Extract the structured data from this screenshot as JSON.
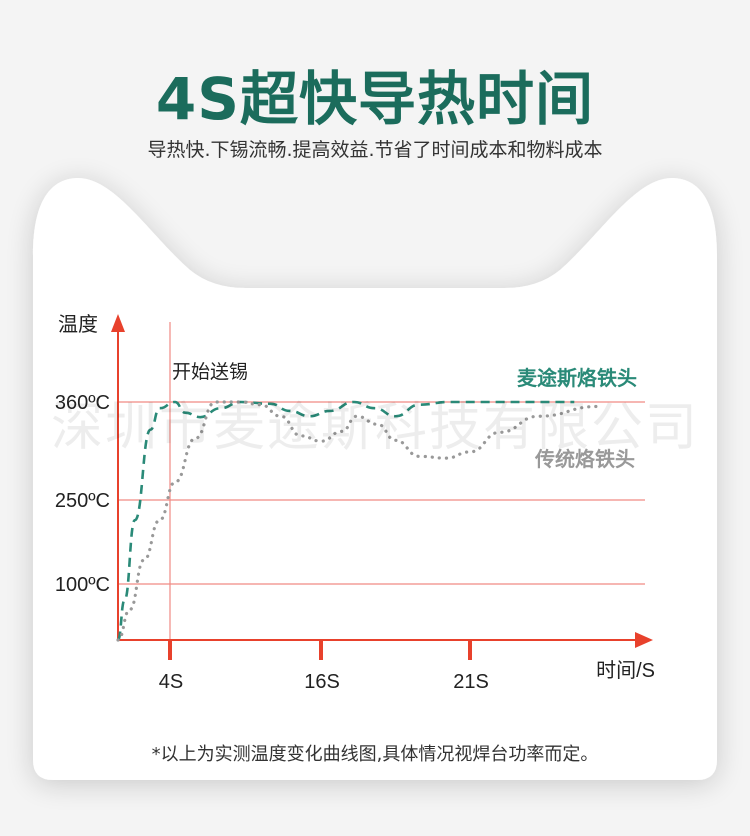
{
  "header": {
    "title": "4S超快导热时间",
    "subtitle": "导热快.下锡流畅.提高效益.节省了时间成本和物料成本"
  },
  "footnote": "*以上为实测温度变化曲线图,具体情况视焊台功率而定。",
  "watermark": "深圳市麦途斯科技有限公司",
  "colors": {
    "title": "#1b6c5c",
    "axis": "#e8412c",
    "gridline": "#f08a84",
    "series_mitus": "#2a8a78",
    "series_traditional": "#999999"
  },
  "chart_data": {
    "type": "line",
    "ylabel": "温度",
    "xlabel": "时间/S",
    "y_ticks": [
      {
        "value": 100,
        "label": "100ºC"
      },
      {
        "value": 250,
        "label": "250ºC"
      },
      {
        "value": 360,
        "label": "360ºC"
      }
    ],
    "x_ticks": [
      {
        "value": 4,
        "label": "4S"
      },
      {
        "value": 16,
        "label": "16S"
      },
      {
        "value": 21,
        "label": "21S"
      }
    ],
    "grid": "horizontal lines at y ticks",
    "annotations": [
      {
        "x": 4,
        "label": "开始送锡"
      }
    ],
    "series": [
      {
        "name": "麦途斯烙铁头",
        "style": "dashed",
        "x": [
          0,
          0.5,
          1.3,
          2.5,
          3.2,
          4.4,
          5.2,
          6.4,
          8,
          9.6,
          12,
          13.5,
          15.1,
          16.3,
          17.1,
          17.8,
          18.5,
          19.3,
          20.3,
          24.5
        ],
        "y": [
          0,
          71,
          214,
          329,
          353,
          360,
          348,
          343,
          353,
          360,
          358,
          350,
          344,
          350,
          360,
          353,
          344,
          357,
          360,
          360
        ]
      },
      {
        "name": "传统烙铁头",
        "style": "dotted",
        "x": [
          0,
          0.9,
          2.0,
          3.2,
          4.4,
          6.0,
          7.6,
          9.6,
          11.2,
          12.8,
          14.4,
          16,
          16.7,
          17.2,
          17.9,
          18.5,
          19.3,
          20.2,
          21,
          22,
          23.3,
          25.3
        ],
        "y": [
          0,
          54,
          143,
          214,
          270,
          319,
          360,
          360,
          357,
          344,
          322,
          316,
          327,
          344,
          335,
          317,
          299,
          297,
          304,
          326,
          344,
          355
        ]
      }
    ]
  }
}
